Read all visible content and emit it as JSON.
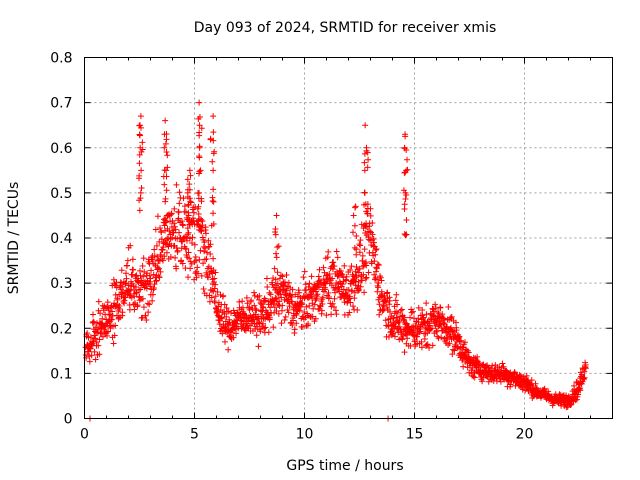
{
  "chart_data": {
    "type": "scatter",
    "title": "Day 093 of 2024, SRMTID for receiver xmis",
    "xlabel": "GPS time / hours",
    "ylabel": "SRMTID / TECUs",
    "xlim": [
      0,
      24
    ],
    "ylim": [
      0,
      0.8
    ],
    "xticks": [
      0,
      5,
      10,
      15,
      20
    ],
    "yticks": [
      0,
      0.1,
      0.2,
      0.3,
      0.4,
      0.5,
      0.6,
      0.7,
      0.8
    ],
    "xtick_labels": [
      "0",
      "5",
      "10",
      "15",
      "20"
    ],
    "ytick_labels": [
      "0",
      "0.1",
      "0.2",
      "0.3",
      "0.4",
      "0.5",
      "0.6",
      "0.7",
      "0.8"
    ],
    "grid": true,
    "marker": "plus",
    "color": "#ff0000",
    "trend": {
      "x": [
        0,
        0.3,
        0.7,
        1.2,
        1.6,
        2.0,
        2.5,
        3.0,
        3.5,
        4.0,
        4.5,
        5.0,
        5.5,
        6.0,
        6.5,
        7.0,
        7.5,
        8.0,
        8.5,
        9.0,
        9.5,
        10.0,
        10.5,
        11.0,
        11.5,
        12.0,
        12.5,
        13.0,
        13.5,
        14.0,
        14.5,
        15.0,
        15.5,
        16.0,
        16.5,
        17.0,
        17.5,
        18.0,
        18.5,
        19.0,
        19.5,
        20.0,
        20.5,
        21.0,
        21.5,
        22.0,
        22.5,
        22.8
      ],
      "y": [
        0.15,
        0.17,
        0.2,
        0.23,
        0.27,
        0.3,
        0.28,
        0.3,
        0.38,
        0.42,
        0.4,
        0.42,
        0.38,
        0.25,
        0.2,
        0.22,
        0.23,
        0.22,
        0.26,
        0.28,
        0.24,
        0.25,
        0.27,
        0.3,
        0.3,
        0.28,
        0.33,
        0.4,
        0.27,
        0.22,
        0.2,
        0.2,
        0.2,
        0.22,
        0.2,
        0.17,
        0.12,
        0.11,
        0.1,
        0.1,
        0.09,
        0.08,
        0.06,
        0.05,
        0.04,
        0.04,
        0.07,
        0.12
      ],
      "spread": [
        0.06,
        0.07,
        0.08,
        0.08,
        0.09,
        0.1,
        0.09,
        0.1,
        0.12,
        0.12,
        0.12,
        0.14,
        0.13,
        0.08,
        0.06,
        0.06,
        0.06,
        0.07,
        0.08,
        0.09,
        0.08,
        0.08,
        0.08,
        0.09,
        0.09,
        0.08,
        0.1,
        0.12,
        0.08,
        0.07,
        0.07,
        0.07,
        0.07,
        0.06,
        0.06,
        0.05,
        0.04,
        0.03,
        0.03,
        0.03,
        0.03,
        0.03,
        0.02,
        0.02,
        0.02,
        0.02,
        0.03,
        0.03
      ]
    },
    "spikes": [
      {
        "x": 2.55,
        "y": [
          0.5,
          0.55,
          0.6,
          0.65,
          0.67
        ]
      },
      {
        "x": 3.7,
        "y": [
          0.45,
          0.55,
          0.6,
          0.63,
          0.66
        ]
      },
      {
        "x": 4.75,
        "y": [
          0.45,
          0.5,
          0.53,
          0.55
        ]
      },
      {
        "x": 5.25,
        "y": [
          0.5,
          0.55,
          0.6,
          0.65,
          0.7
        ]
      },
      {
        "x": 5.8,
        "y": [
          0.48,
          0.55,
          0.62,
          0.67
        ]
      },
      {
        "x": 12.8,
        "y": [
          0.5,
          0.55,
          0.6,
          0.65
        ]
      },
      {
        "x": 14.6,
        "y": [
          0.44,
          0.5,
          0.55,
          0.6,
          0.63
        ]
      },
      {
        "x": 12.3,
        "y": [
          0.45,
          0.47
        ]
      },
      {
        "x": 8.75,
        "y": [
          0.42,
          0.45
        ]
      }
    ],
    "zeros": [
      0.25,
      13.8
    ]
  }
}
